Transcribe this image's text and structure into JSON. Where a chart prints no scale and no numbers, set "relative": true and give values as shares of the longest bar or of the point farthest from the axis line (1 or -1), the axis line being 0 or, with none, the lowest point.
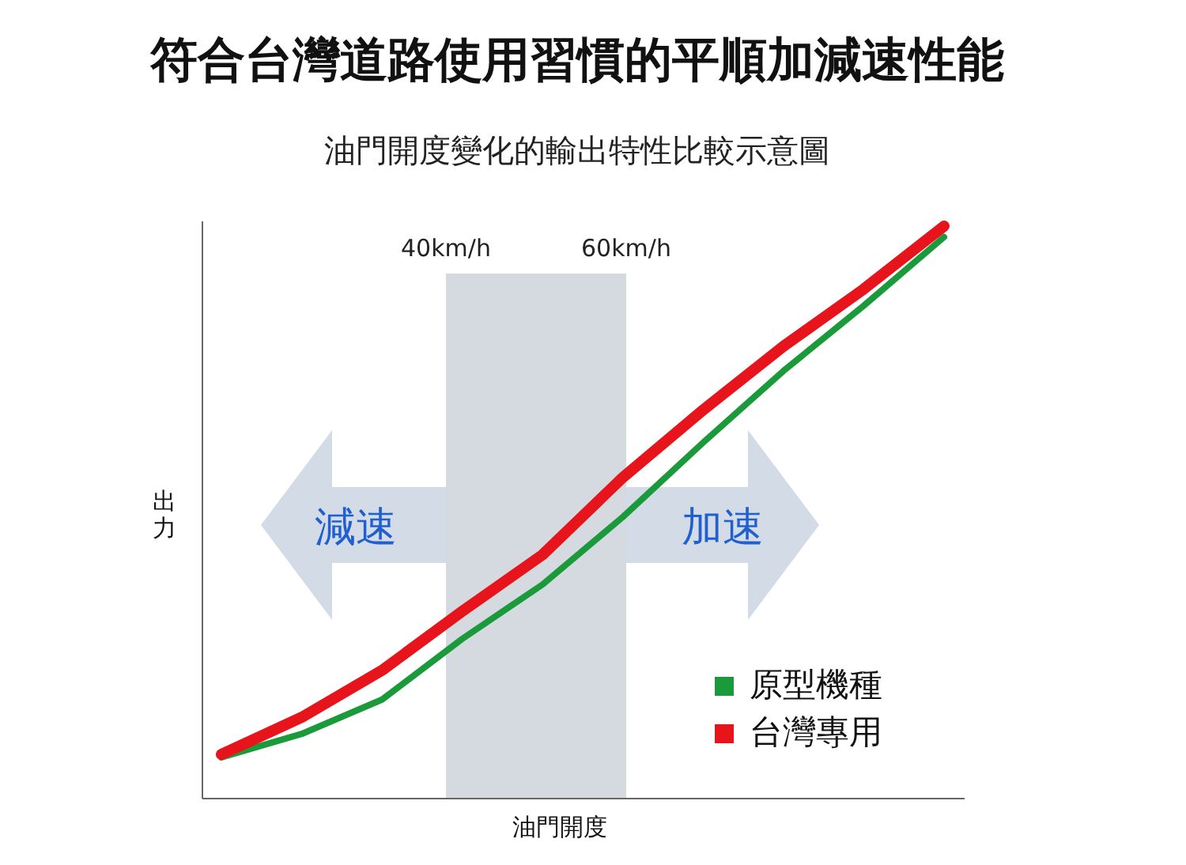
{
  "chart_data": {
    "type": "line",
    "title": "符合台灣道路使用習慣的平順加減速性能",
    "subtitle": "油門開度變化的輸出特性比較示意圖",
    "xlabel": "油門開度",
    "ylabel": "出力",
    "relative": true,
    "legend": "bottom right",
    "marker": "none",
    "line_style": "solid",
    "categories": [
      null,
      null,
      null,
      null,
      null,
      null,
      null,
      null,
      null,
      null
    ],
    "series": [
      {
        "name": "原型機種",
        "color": "#1a9a3a",
        "values": [
          0.072,
          0.113,
          0.173,
          0.279,
          0.374,
          0.492,
          0.622,
          0.747,
          0.861,
          0.981
        ]
      },
      {
        "name": "台灣專用",
        "color": "#e8141c",
        "values": [
          0.077,
          0.142,
          0.224,
          0.327,
          0.426,
          0.561,
          0.679,
          0.79,
          0.89,
          1.0
        ]
      }
    ],
    "annotations": [
      "減速",
      "加速",
      "40km/h",
      "60km/h"
    ]
  }
}
